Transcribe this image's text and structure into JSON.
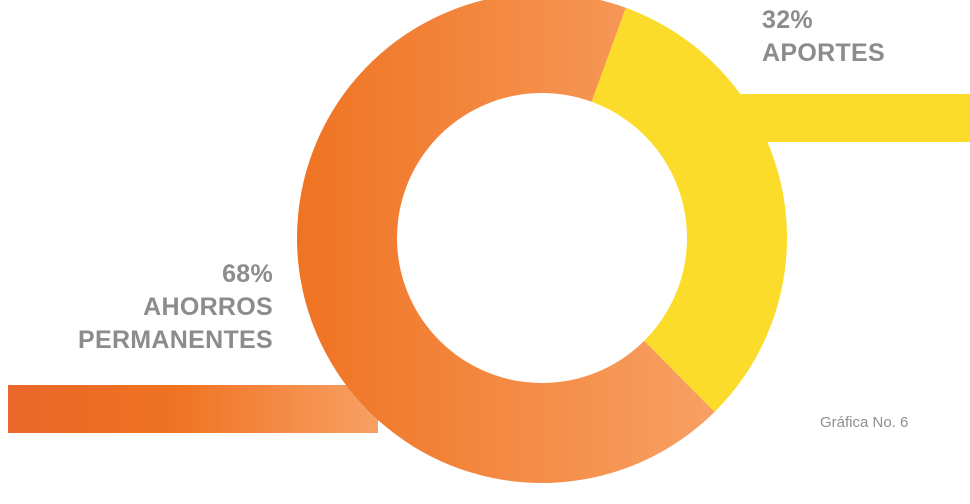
{
  "chart_data": {
    "type": "pie",
    "categories": [
      "APORTES",
      "AHORROS PERMANENTES"
    ],
    "values": [
      32,
      68
    ],
    "labels": [
      {
        "percent": "32%",
        "name": "APORTES"
      },
      {
        "percent": "68%",
        "name_lines": [
          "AHORROS",
          "PERMANENTES"
        ]
      }
    ],
    "colors": {
      "aportes": "#fcdc2a",
      "ahorros_dark": "#ef7322",
      "ahorros_light": "#f8a064"
    },
    "caption": "Gráfica No. 6"
  }
}
